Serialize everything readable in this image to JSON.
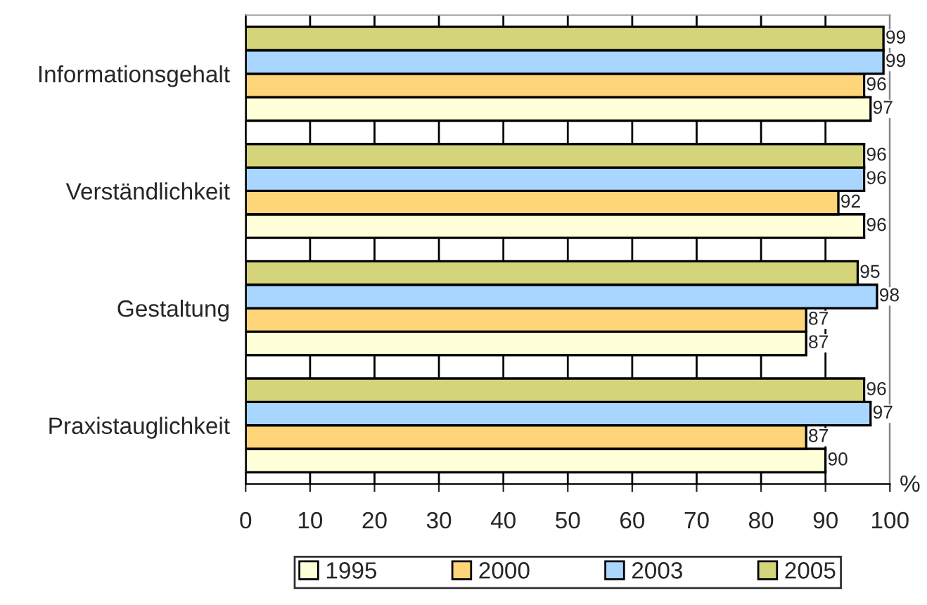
{
  "chart_data": {
    "type": "bar",
    "orientation": "horizontal",
    "categories": [
      "Informationsgehalt",
      "Verständlichkeit",
      "Gestaltung",
      "Praxistauglichkeit"
    ],
    "series": [
      {
        "name": "1995",
        "color": "#ffffd9",
        "values": [
          97,
          96,
          87,
          90
        ]
      },
      {
        "name": "2000",
        "color": "#ffd57a",
        "values": [
          96,
          92,
          87,
          87
        ]
      },
      {
        "name": "2003",
        "color": "#a8d6ff",
        "values": [
          99,
          96,
          98,
          97
        ]
      },
      {
        "name": "2005",
        "color": "#d4d47a",
        "values": [
          99,
          96,
          95,
          96
        ]
      }
    ],
    "xlabel": "%",
    "xlim": [
      0,
      100
    ],
    "xticks": [
      0,
      10,
      20,
      30,
      40,
      50,
      60,
      70,
      80,
      90,
      100
    ],
    "grid": "x",
    "legend": "bottom",
    "data_labels": true
  }
}
